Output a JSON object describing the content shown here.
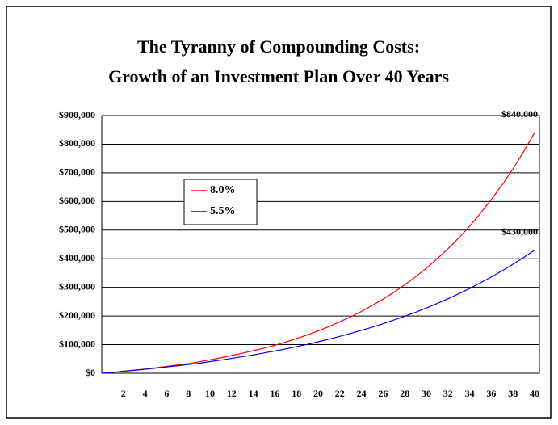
{
  "chart_data": {
    "type": "line",
    "title": [
      "The Tyranny of Compounding Costs:",
      "Growth of an Investment Plan Over 40 Years"
    ],
    "x": [
      0,
      1,
      2,
      3,
      4,
      5,
      6,
      7,
      8,
      9,
      10,
      11,
      12,
      13,
      14,
      15,
      16,
      17,
      18,
      19,
      20,
      21,
      22,
      23,
      24,
      25,
      26,
      27,
      28,
      29,
      30,
      31,
      32,
      33,
      34,
      35,
      36,
      37,
      38,
      39,
      40
    ],
    "series": [
      {
        "name": "8.0%",
        "color": "#ff0000",
        "values": [
          0,
          3000,
          7000,
          11000,
          15000,
          19000,
          24000,
          29000,
          34000,
          40000,
          47000,
          54000,
          62000,
          70000,
          79000,
          88000,
          98000,
          109000,
          121000,
          134000,
          148000,
          163000,
          180000,
          197000,
          216000,
          237000,
          259000,
          283000,
          309000,
          337000,
          367000,
          400000,
          435000,
          473000,
          514000,
          559000,
          607000,
          658000,
          714000,
          775000,
          840000
        ]
      },
      {
        "name": "5.5%",
        "color": "#0000ff",
        "values": [
          0,
          3000,
          7000,
          10000,
          14000,
          18000,
          22000,
          26000,
          31000,
          35000,
          41000,
          46000,
          52000,
          58000,
          64000,
          71000,
          78000,
          85000,
          93000,
          101000,
          110000,
          119000,
          129000,
          139000,
          150000,
          161000,
          173000,
          186000,
          199000,
          213000,
          228000,
          244000,
          260000,
          278000,
          296000,
          316000,
          336000,
          358000,
          381000,
          405000,
          430000
        ]
      }
    ],
    "annotations": [
      "$840,000",
      "$430,000"
    ],
    "xlim": [
      0,
      40
    ],
    "xticks": [
      2,
      4,
      6,
      8,
      10,
      12,
      14,
      16,
      18,
      20,
      22,
      24,
      26,
      28,
      30,
      32,
      34,
      36,
      38,
      40
    ],
    "ylim": [
      0,
      900000
    ],
    "yticks": [
      {
        "value": 0,
        "label": "$0"
      },
      {
        "value": 100000,
        "label": "$100,000"
      },
      {
        "value": 200000,
        "label": "$200,000"
      },
      {
        "value": 300000,
        "label": "$300,000"
      },
      {
        "value": 400000,
        "label": "$400,000"
      },
      {
        "value": 500000,
        "label": "$500,000"
      },
      {
        "value": 600000,
        "label": "$600,000"
      },
      {
        "value": 700000,
        "label": "$700,000"
      },
      {
        "value": 800000,
        "label": "$800,000"
      },
      {
        "value": 900000,
        "label": "$900,000"
      }
    ],
    "grid": true,
    "legend": "upper left"
  }
}
